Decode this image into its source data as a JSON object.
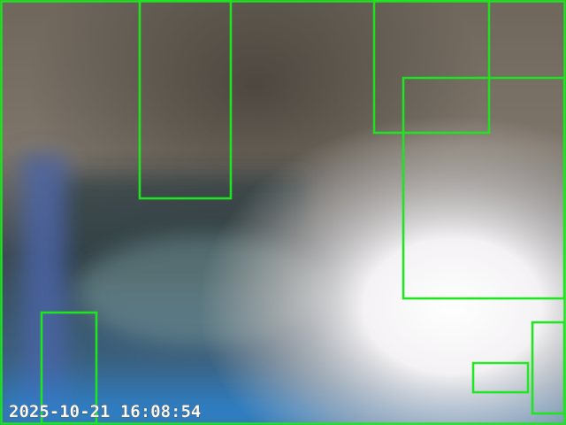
{
  "overlay": {
    "timestamp": "2025-10-21 16:08:54"
  }
}
